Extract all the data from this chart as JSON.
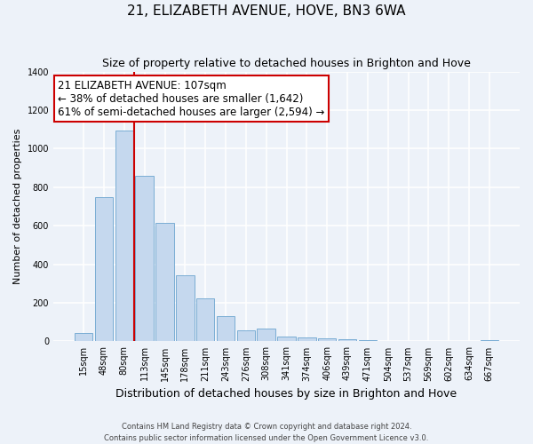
{
  "title": "21, ELIZABETH AVENUE, HOVE, BN3 6WA",
  "subtitle": "Size of property relative to detached houses in Brighton and Hove",
  "xlabel": "Distribution of detached houses by size in Brighton and Hove",
  "ylabel": "Number of detached properties",
  "bar_labels": [
    "15sqm",
    "48sqm",
    "80sqm",
    "113sqm",
    "145sqm",
    "178sqm",
    "211sqm",
    "243sqm",
    "276sqm",
    "308sqm",
    "341sqm",
    "374sqm",
    "406sqm",
    "439sqm",
    "471sqm",
    "504sqm",
    "537sqm",
    "569sqm",
    "602sqm",
    "634sqm",
    "667sqm"
  ],
  "bar_values": [
    45,
    750,
    1095,
    860,
    615,
    345,
    225,
    130,
    55,
    65,
    25,
    20,
    15,
    10,
    5,
    3,
    0,
    0,
    0,
    0,
    5
  ],
  "bar_color": "#c5d8ee",
  "bar_edge_color": "#7aadd4",
  "vline_x": 2.5,
  "vline_color": "#cc0000",
  "annotation_text": "21 ELIZABETH AVENUE: 107sqm\n← 38% of detached houses are smaller (1,642)\n61% of semi-detached houses are larger (2,594) →",
  "annotation_box_color": "#ffffff",
  "annotation_box_edge": "#cc0000",
  "ylim": [
    0,
    1400
  ],
  "yticks": [
    0,
    200,
    400,
    600,
    800,
    1000,
    1200,
    1400
  ],
  "footer_line1": "Contains HM Land Registry data © Crown copyright and database right 2024.",
  "footer_line2": "Contains public sector information licensed under the Open Government Licence v3.0.",
  "bg_color": "#edf2f9",
  "grid_color": "#ffffff",
  "title_fontsize": 11,
  "subtitle_fontsize": 9,
  "xlabel_fontsize": 9,
  "ylabel_fontsize": 8,
  "annotation_fontsize": 8.5,
  "tick_fontsize": 7
}
